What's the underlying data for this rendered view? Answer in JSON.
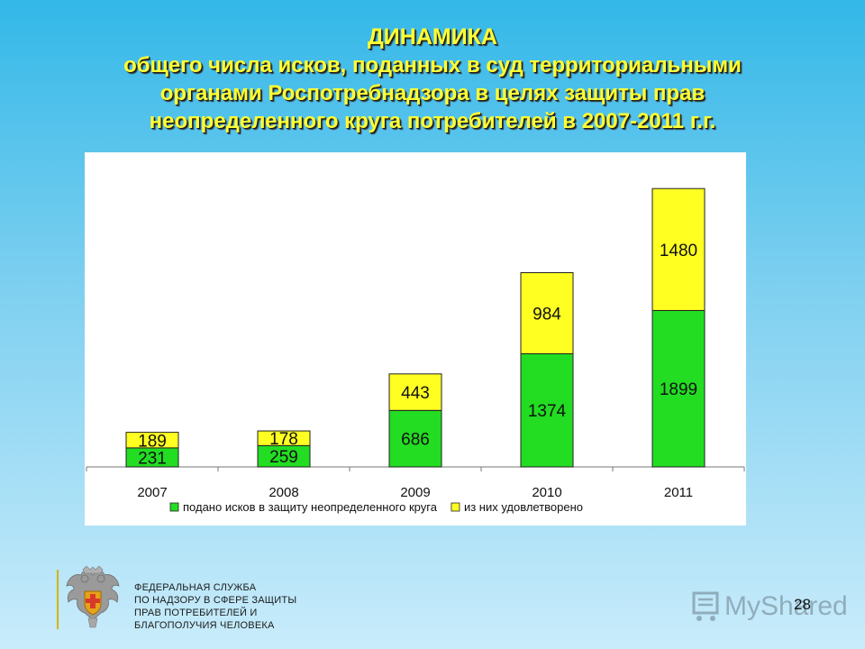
{
  "title_lines": [
    "ДИНАМИКА",
    "общего числа исков, поданных в суд территориальными",
    "органами Роспотребнадзора в целях защиты прав",
    "неопределенного круга потребителей в 2007-2011 г.г."
  ],
  "chart_data": {
    "type": "bar",
    "stacked": true,
    "categories": [
      "2007",
      "2008",
      "2009",
      "2010",
      "2011"
    ],
    "series": [
      {
        "name": "подано исков в защиту неопределенного круга",
        "color": "#22dd22",
        "values": [
          231,
          259,
          686,
          1374,
          1899
        ]
      },
      {
        "name": "из них удовлетворено",
        "color": "#ffff22",
        "values": [
          189,
          178,
          443,
          984,
          1480
        ]
      }
    ],
    "ylim": [
      0,
      3600
    ],
    "legend_position": "bottom",
    "grid": false
  },
  "footer": {
    "agency_lines": [
      "ФЕДЕРАЛЬНАЯ СЛУЖБА",
      "ПО НАДЗОРУ В СФЕРЕ ЗАЩИТЫ",
      "ПРАВ ПОТРЕБИТЕЛЕЙ И",
      "БЛАГОПОЛУЧИЯ ЧЕЛОВЕКА"
    ],
    "page_number": "28",
    "watermark_text": "MyShared"
  }
}
